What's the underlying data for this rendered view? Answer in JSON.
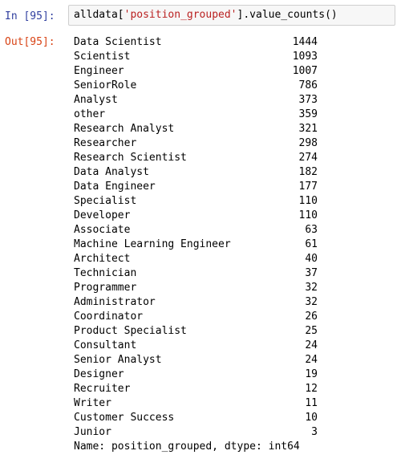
{
  "input_cell": {
    "prompt": "In [95]:",
    "code_prefix": "alldata[",
    "code_string": "'position_grouped'",
    "code_suffix": "].value_counts()"
  },
  "output_cell": {
    "prompt": "Out[95]:",
    "rows": [
      {
        "label": "Data Scientist",
        "count": "1444"
      },
      {
        "label": "Scientist",
        "count": "1093"
      },
      {
        "label": "Engineer",
        "count": "1007"
      },
      {
        "label": "SeniorRole",
        "count": "786"
      },
      {
        "label": "Analyst",
        "count": "373"
      },
      {
        "label": "other",
        "count": "359"
      },
      {
        "label": "Research Analyst",
        "count": "321"
      },
      {
        "label": "Researcher",
        "count": "298"
      },
      {
        "label": "Research Scientist",
        "count": "274"
      },
      {
        "label": "Data Analyst",
        "count": "182"
      },
      {
        "label": "Data Engineer",
        "count": "177"
      },
      {
        "label": "Specialist",
        "count": "110"
      },
      {
        "label": "Developer",
        "count": "110"
      },
      {
        "label": "Associate",
        "count": "63"
      },
      {
        "label": "Machine Learning Engineer",
        "count": "61"
      },
      {
        "label": "Architect",
        "count": "40"
      },
      {
        "label": "Technician",
        "count": "37"
      },
      {
        "label": "Programmer",
        "count": "32"
      },
      {
        "label": "Administrator",
        "count": "32"
      },
      {
        "label": "Coordinator",
        "count": "26"
      },
      {
        "label": "Product Specialist",
        "count": "25"
      },
      {
        "label": "Consultant",
        "count": "24"
      },
      {
        "label": "Senior Analyst",
        "count": "24"
      },
      {
        "label": "Designer",
        "count": "19"
      },
      {
        "label": "Recruiter",
        "count": "12"
      },
      {
        "label": "Writer",
        "count": "11"
      },
      {
        "label": "Customer Success",
        "count": "10"
      },
      {
        "label": "Junior",
        "count": "3"
      }
    ],
    "footer": "Name: position_grouped, dtype: int64"
  }
}
